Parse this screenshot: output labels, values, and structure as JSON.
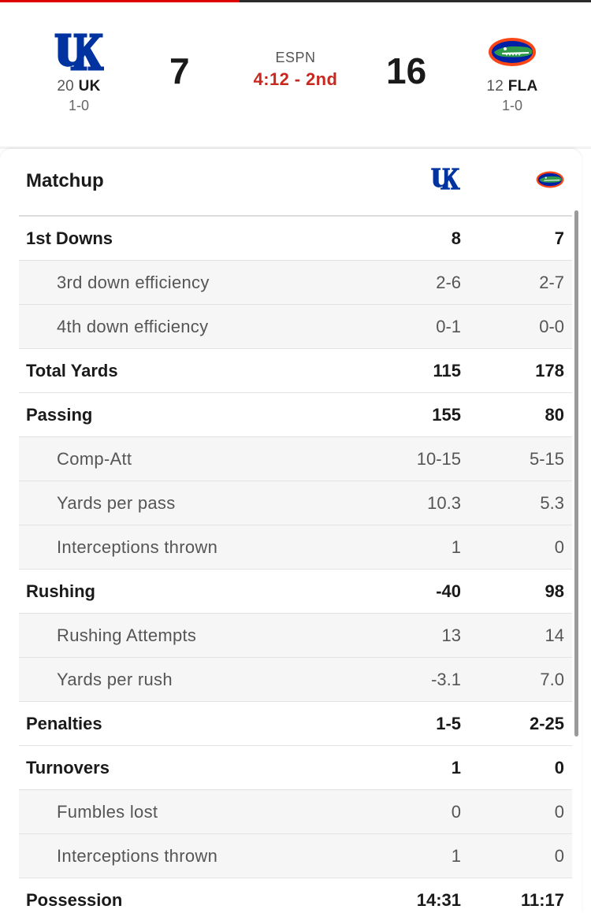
{
  "game": {
    "network": "ESPN",
    "clock": "4:12 - 2nd",
    "away": {
      "rank": "20",
      "abbr": "UK",
      "record": "1-0",
      "score": "7",
      "logo": "kentucky-uk-logo",
      "color": "#0033a0"
    },
    "home": {
      "rank": "12",
      "abbr": "FLA",
      "record": "1-0",
      "score": "16",
      "logo": "florida-gator-logo",
      "color": "#0021a5",
      "accent": "#fa4616"
    }
  },
  "matchup": {
    "title": "Matchup",
    "rows": [
      {
        "label": "1st Downs",
        "away": "8",
        "home": "7",
        "type": "main"
      },
      {
        "label": "3rd down efficiency",
        "away": "2-6",
        "home": "2-7",
        "type": "sub"
      },
      {
        "label": "4th down efficiency",
        "away": "0-1",
        "home": "0-0",
        "type": "sub"
      },
      {
        "label": "Total Yards",
        "away": "115",
        "home": "178",
        "type": "main"
      },
      {
        "label": "Passing",
        "away": "155",
        "home": "80",
        "type": "main"
      },
      {
        "label": "Comp-Att",
        "away": "10-15",
        "home": "5-15",
        "type": "sub"
      },
      {
        "label": "Yards per pass",
        "away": "10.3",
        "home": "5.3",
        "type": "sub"
      },
      {
        "label": "Interceptions thrown",
        "away": "1",
        "home": "0",
        "type": "sub"
      },
      {
        "label": "Rushing",
        "away": "-40",
        "home": "98",
        "type": "main"
      },
      {
        "label": "Rushing Attempts",
        "away": "13",
        "home": "14",
        "type": "sub"
      },
      {
        "label": "Yards per rush",
        "away": "-3.1",
        "home": "7.0",
        "type": "sub"
      },
      {
        "label": "Penalties",
        "away": "1-5",
        "home": "2-25",
        "type": "main"
      },
      {
        "label": "Turnovers",
        "away": "1",
        "home": "0",
        "type": "main"
      },
      {
        "label": "Fumbles lost",
        "away": "0",
        "home": "0",
        "type": "sub"
      },
      {
        "label": "Interceptions thrown",
        "away": "1",
        "home": "0",
        "type": "sub"
      },
      {
        "label": "Possession",
        "away": "14:31",
        "home": "11:17",
        "type": "main"
      }
    ]
  }
}
